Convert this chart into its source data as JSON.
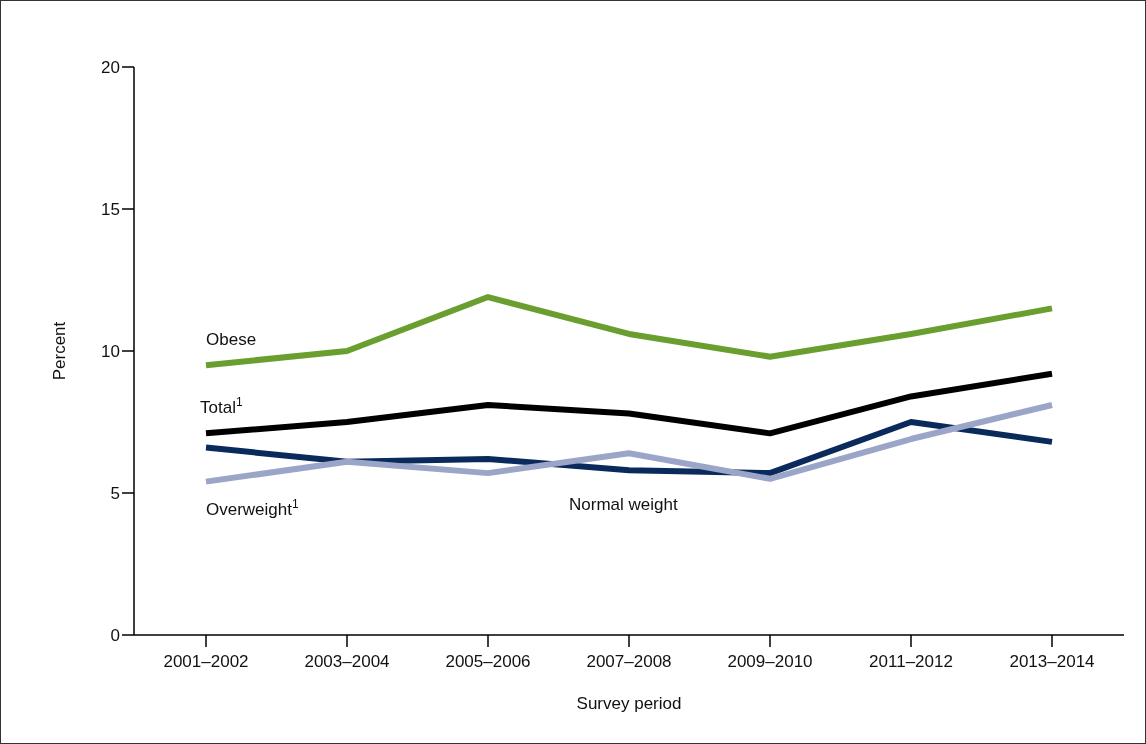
{
  "chart_data": {
    "type": "line",
    "xlabel": "Survey period",
    "ylabel": "Percent",
    "categories": [
      "2001–2002",
      "2003–2004",
      "2005–2006",
      "2007–2008",
      "2009–2010",
      "2011–2012",
      "2013–2014"
    ],
    "series": [
      {
        "name": "Obese",
        "color": "#6a9e2f",
        "values": [
          9.5,
          10.0,
          11.9,
          10.6,
          9.8,
          10.6,
          11.5
        ]
      },
      {
        "name": "Total$^{1}$",
        "color": "#000000",
        "values": [
          7.1,
          7.5,
          8.1,
          7.8,
          7.1,
          8.4,
          9.2
        ]
      },
      {
        "name": "Normal weight",
        "color": "#0a2a5c",
        "values": [
          6.6,
          6.1,
          6.2,
          5.8,
          5.7,
          7.5,
          6.8
        ]
      },
      {
        "name": "Overweight$^{1}$",
        "color": "#9aa5c8",
        "values": [
          5.4,
          6.1,
          5.7,
          6.4,
          5.5,
          6.9,
          8.1
        ]
      }
    ],
    "ylim": [
      0,
      20
    ],
    "yticks": [
      0,
      5,
      10,
      15,
      20
    ],
    "grid": false,
    "legend": false,
    "marker": "none",
    "line_style": "solid"
  }
}
